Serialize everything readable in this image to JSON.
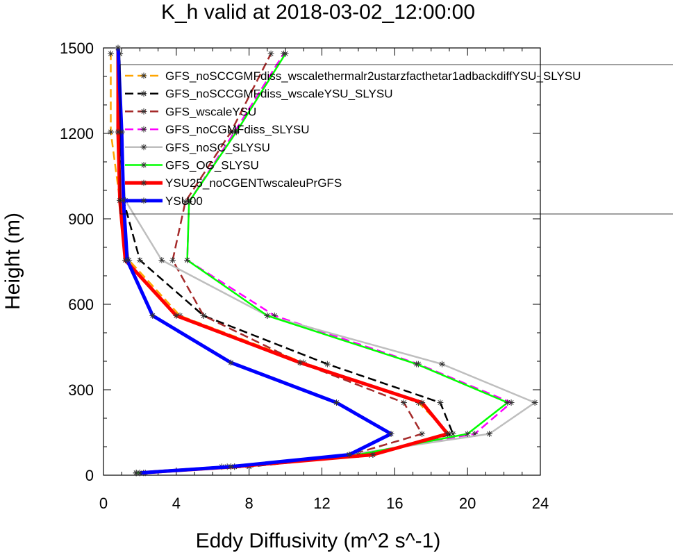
{
  "chart_data": {
    "type": "line",
    "title": "K_h valid at 2018-03-02_12:00:00",
    "xlabel": "Eddy Diffusivity (m^2 s^-1)",
    "ylabel": "Height (m)",
    "xlim": [
      0,
      24
    ],
    "ylim": [
      0,
      1500
    ],
    "xticks": [
      0,
      4,
      8,
      12,
      16,
      20,
      24
    ],
    "yticks": [
      0,
      300,
      600,
      900,
      1200,
      1500
    ],
    "grid": false,
    "legend_position": "upper-right",
    "series": [
      {
        "name": "GFS_noSCCGMFdiss_wscalethermalr2ustarzfacthetar1adbackdiffYSU_SLYSU",
        "color": "#FFA500",
        "dash": "dashed",
        "width": 2.5,
        "points": [
          [
            2.0,
            8
          ],
          [
            7.0,
            30
          ],
          [
            14.8,
            72
          ],
          [
            19.0,
            145
          ],
          [
            17.3,
            255
          ],
          [
            11.0,
            395
          ],
          [
            4.2,
            560
          ],
          [
            1.4,
            755
          ],
          [
            0.9,
            965
          ],
          [
            0.4,
            1205
          ],
          [
            0.4,
            1480
          ]
        ]
      },
      {
        "name": "GFS_noSCCGMFdiss_wscaleYSU_SLYSU",
        "color": "#000000",
        "dash": "dashed",
        "width": 2.5,
        "points": [
          [
            2.3,
            8
          ],
          [
            8.0,
            30
          ],
          [
            14.6,
            72
          ],
          [
            19.2,
            145
          ],
          [
            18.5,
            255
          ],
          [
            12.3,
            390
          ],
          [
            5.5,
            560
          ],
          [
            2.0,
            755
          ],
          [
            1.1,
            965
          ],
          [
            0.9,
            1205
          ],
          [
            0.9,
            1480
          ]
        ]
      },
      {
        "name": "GFS_wscaleYSU",
        "color": "#A52A2A",
        "dash": "dashed",
        "width": 2.5,
        "points": [
          [
            2.2,
            8
          ],
          [
            6.8,
            30
          ],
          [
            13.6,
            72
          ],
          [
            17.5,
            145
          ],
          [
            16.5,
            255
          ],
          [
            10.8,
            395
          ],
          [
            5.5,
            560
          ],
          [
            3.8,
            755
          ],
          [
            4.5,
            960
          ],
          [
            7.0,
            1205
          ],
          [
            9.2,
            1480
          ]
        ]
      },
      {
        "name": "GFS_noCGMFdiss_SLYSU",
        "color": "#FF00FF",
        "dash": "dashed",
        "width": 2.5,
        "points": [
          [
            1.8,
            8
          ],
          [
            7.2,
            30
          ],
          [
            13.8,
            72
          ],
          [
            20.4,
            145
          ],
          [
            22.4,
            255
          ],
          [
            17.3,
            390
          ],
          [
            9.4,
            560
          ],
          [
            4.6,
            755
          ],
          [
            4.7,
            960
          ],
          [
            7.2,
            1205
          ],
          [
            9.9,
            1480
          ]
        ]
      },
      {
        "name": "GFS_noSC_SLYSU",
        "color": "#BEBEBE",
        "dash": "solid",
        "width": 2.5,
        "points": [
          [
            1.8,
            8
          ],
          [
            6.5,
            30
          ],
          [
            13.5,
            72
          ],
          [
            21.2,
            145
          ],
          [
            23.7,
            255
          ],
          [
            18.6,
            390
          ],
          [
            9.0,
            560
          ],
          [
            3.2,
            755
          ],
          [
            1.2,
            965
          ],
          [
            0.9,
            1205
          ],
          [
            0.9,
            1480
          ]
        ]
      },
      {
        "name": "GFS_OG_SLYSU",
        "color": "#00FF00",
        "dash": "solid",
        "width": 2.5,
        "points": [
          [
            1.8,
            8
          ],
          [
            7.0,
            30
          ],
          [
            14.0,
            72
          ],
          [
            20.0,
            145
          ],
          [
            22.2,
            255
          ],
          [
            17.2,
            390
          ],
          [
            9.0,
            560
          ],
          [
            4.6,
            755
          ],
          [
            4.7,
            960
          ],
          [
            7.3,
            1205
          ],
          [
            10.0,
            1480
          ]
        ]
      },
      {
        "name": "YSU25_noCGENTwscaleuPrGFS",
        "color": "#FF0000",
        "dash": "solid",
        "width": 5,
        "points": [
          [
            2.0,
            8
          ],
          [
            7.2,
            30
          ],
          [
            14.8,
            72
          ],
          [
            18.9,
            145
          ],
          [
            17.5,
            255
          ],
          [
            10.8,
            395
          ],
          [
            4.0,
            560
          ],
          [
            1.2,
            755
          ],
          [
            0.9,
            965
          ],
          [
            0.8,
            1205
          ],
          [
            0.8,
            1500
          ]
        ]
      },
      {
        "name": "YSU00",
        "color": "#0000FF",
        "dash": "solid",
        "width": 5,
        "points": [
          [
            2.0,
            8
          ],
          [
            7.0,
            30
          ],
          [
            13.5,
            72
          ],
          [
            15.8,
            145
          ],
          [
            12.8,
            255
          ],
          [
            7.0,
            395
          ],
          [
            2.7,
            560
          ],
          [
            1.3,
            755
          ],
          [
            1.1,
            965
          ],
          [
            1.0,
            1205
          ],
          [
            0.8,
            1500
          ]
        ]
      }
    ]
  }
}
